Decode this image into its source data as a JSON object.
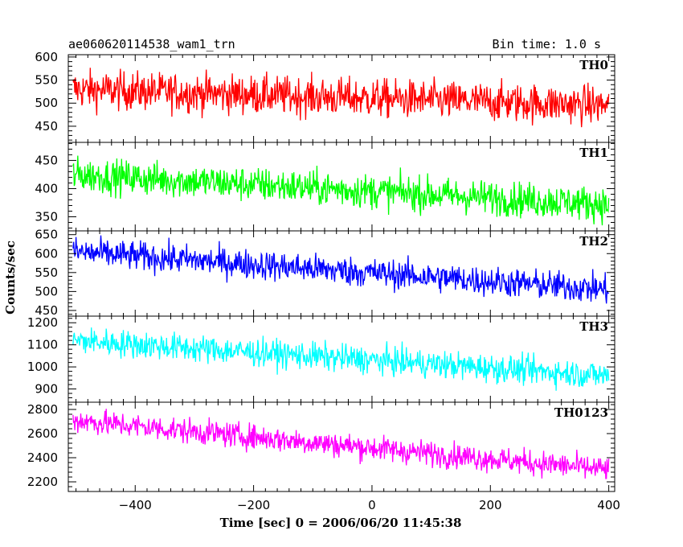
{
  "header": {
    "left": "ae060620114538_wam1_trn",
    "right": "Bin time: 1.0 s"
  },
  "chart_data": {
    "type": "line",
    "title": "ae060620114538_wam1_trn",
    "subtitle": "Bin time: 1.0 s",
    "xlabel": "Time [sec] 0 = 2006/06/20 11:45:38",
    "ylabel": "Counts/sec",
    "xlim": [
      -513,
      410
    ],
    "xticks": [
      -400,
      -200,
      0,
      200,
      400
    ],
    "x_range": [
      -505,
      400
    ],
    "grid": false,
    "panels": [
      {
        "name": "TH0",
        "color": "#ff0000",
        "ylim": [
          415,
          605
        ],
        "yticks": [
          450,
          500,
          550,
          600
        ],
        "trend": {
          "start": 530,
          "end": 495
        },
        "noise": 30
      },
      {
        "name": "TH1",
        "color": "#00ff00",
        "ylim": [
          325,
          482
        ],
        "yticks": [
          350,
          400,
          450
        ],
        "trend": {
          "start": 425,
          "end": 372
        },
        "noise": 22
      },
      {
        "name": "TH2",
        "color": "#0000ff",
        "ylim": [
          435,
          660
        ],
        "yticks": [
          450,
          500,
          550,
          600,
          650
        ],
        "trend": {
          "start": 605,
          "end": 505
        },
        "noise": 28
      },
      {
        "name": "TH3",
        "color": "#00ffff",
        "ylim": [
          840,
          1230
        ],
        "yticks": [
          900,
          1000,
          1100,
          1200
        ],
        "trend": {
          "start": 1120,
          "end": 960
        },
        "noise": 45
      },
      {
        "name": "TH0123",
        "color": "#ff00ff",
        "ylim": [
          2120,
          2860
        ],
        "yticks": [
          2200,
          2400,
          2600,
          2800
        ],
        "trend": {
          "start": 2710,
          "end": 2300
        },
        "noise": 75
      }
    ]
  }
}
